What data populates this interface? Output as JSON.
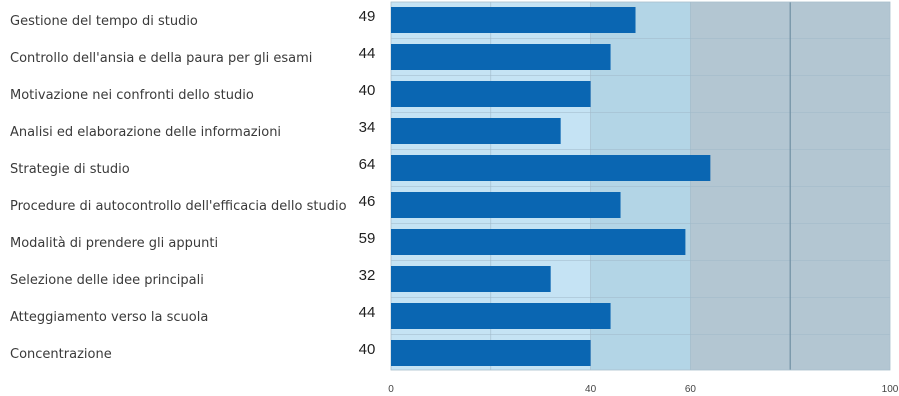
{
  "chart_data": {
    "type": "bar",
    "orientation": "horizontal",
    "categories": [
      "Gestione del tempo di studio",
      "Controllo dell'ansia e della paura per gli esami",
      "Motivazione nei confronti dello studio",
      "Analisi ed elaborazione delle informazioni",
      "Strategie di studio",
      "Procedure di autocontrollo dell'efficacia dello studio",
      "Modalità di prendere gli appunti",
      "Selezione delle idee principali",
      "Atteggiamento verso la scuola",
      "Concentrazione"
    ],
    "values": [
      49,
      44,
      40,
      34,
      64,
      46,
      59,
      32,
      44,
      40
    ],
    "xlim": [
      0,
      100
    ],
    "xticks": [
      "0",
      "40",
      "60",
      "100"
    ],
    "bands": [
      {
        "from": 0,
        "to": 40,
        "color": "#c5e3f4"
      },
      {
        "from": 40,
        "to": 60,
        "color": "#b3d5e6"
      },
      {
        "from": 60,
        "to": 100,
        "color": "#b3c6d2"
      }
    ],
    "bar_color": "#0a66b2",
    "grid": true,
    "show_value_labels": true
  }
}
